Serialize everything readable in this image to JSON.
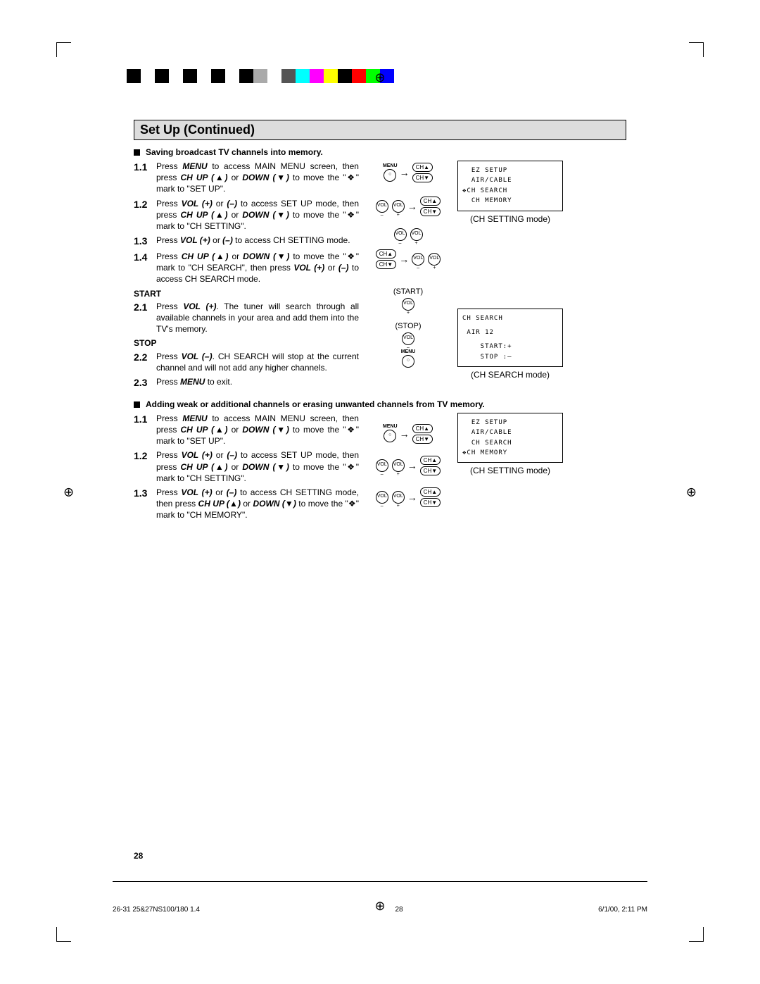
{
  "title": "Set Up (Continued)",
  "heading1": "Saving broadcast TV channels into memory.",
  "section1": {
    "s11_num": "1.1",
    "s11_text": "Press MENU to access MAIN MENU screen, then press CH UP (▲) or DOWN (▼) to move the \"❖\" mark to \"SET UP\".",
    "s12_num": "1.2",
    "s12_text": "Press VOL (+) or (–) to access SET UP mode, then press CH UP (▲) or DOWN (▼) to move the \"❖\" mark to \"CH SETTING\".",
    "s13_num": "1.3",
    "s13_text": "Press VOL (+) or (–) to access CH SETTING mode.",
    "s14_num": "1.4",
    "s14_text": "Press CH UP (▲) or DOWN (▼) to move the \"❖\" mark to \"CH SEARCH\", then press VOL (+) or (–) to access CH SEARCH mode.",
    "start_label": "START",
    "s21_num": "2.1",
    "s21_text": "Press VOL (+). The tuner will search through all available channels in your area and add them into the TV's memory.",
    "stop_label": "STOP",
    "s22_num": "2.2",
    "s22_text": "Press VOL (–). CH SEARCH will stop at the current channel and will not add any higher channels.",
    "s23_num": "2.3",
    "s23_text": "Press MENU to exit."
  },
  "heading2": "Adding weak or additional channels or erasing unwanted channels from TV memory.",
  "section2": {
    "s11_num": "1.1",
    "s11_text": "Press MENU to access MAIN MENU screen, then press CH UP (▲) or DOWN (▼) to move the \"❖\" mark to \"SET UP\".",
    "s12_num": "1.2",
    "s12_text": "Press VOL (+) or (–) to access SET UP mode, then press CH UP (▲) or DOWN (▼) to move the \"❖\" mark to \"CH SETTING\".",
    "s13_num": "1.3",
    "s13_text": "Press VOL (+) or (–) to access CH SETTING mode, then press CH UP (▲) or DOWN (▼) to move the \"❖\" mark to \"CH MEMORY\"."
  },
  "osd1": {
    "l1": "  EZ SETUP",
    "l2": "  AIR/CABLE",
    "l3": "❖CH SEARCH",
    "l4": "  CH MEMORY",
    "caption": "(CH SETTING mode)"
  },
  "osd2": {
    "l1": "CH SEARCH",
    "l2": " AIR 12",
    "l3": "    START:+",
    "l4": "    STOP :–",
    "caption": "(CH SEARCH mode)"
  },
  "osd3": {
    "l1": "  EZ SETUP",
    "l2": "  AIR/CABLE",
    "l3": "  CH SEARCH",
    "l4": "❖CH MEMORY",
    "caption": "(CH SETTING mode)"
  },
  "labels": {
    "start_paren": "(START)",
    "stop_paren": "(STOP)",
    "menu": "MENU",
    "ch_up": "CH▲",
    "ch_dn": "CH▼",
    "vol_p": "VOL +",
    "vol_m": "VOL –"
  },
  "page_num": "28",
  "footer": {
    "left": "26-31 25&27NS100/180 1.4",
    "mid": "28",
    "right": "6/1/00, 2:11 PM"
  },
  "colorbar": [
    "#000",
    "#fff",
    "#000",
    "#fff",
    "#000",
    "#fff",
    "#000",
    "#fff",
    "#000",
    "#aaa",
    "#fff",
    "#555",
    "#00ffff",
    "#ff00ff",
    "#ffff00",
    "#000",
    "#ff0000",
    "#00ff00",
    "#0000ff",
    "#fff"
  ]
}
